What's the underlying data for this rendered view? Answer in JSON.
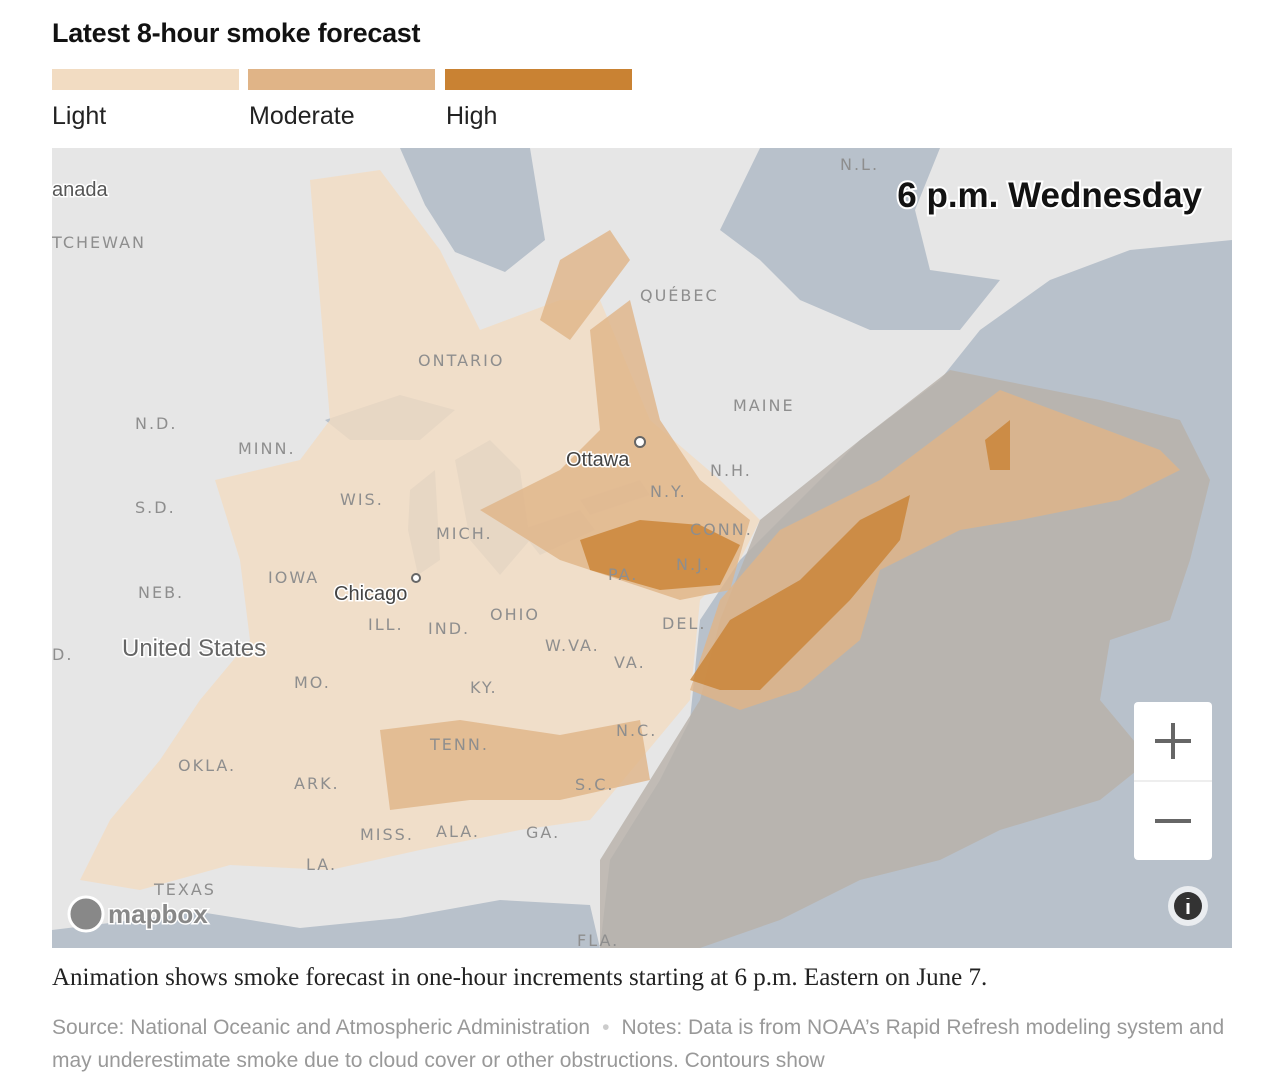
{
  "header": {
    "title": "Latest 8-hour smoke forecast"
  },
  "legend": {
    "items": [
      {
        "label": "Light",
        "color": "#f2dcc2"
      },
      {
        "label": "Moderate",
        "color": "#e0b487"
      },
      {
        "label": "High",
        "color": "#c98233"
      }
    ]
  },
  "map": {
    "time_label": "6 p.m. Wednesday",
    "labels": {
      "canada": "anada",
      "saskatchewan": "TCHEWAN",
      "nl": "N.L.",
      "quebec": "QUÉBEC",
      "ontario": "ONTARIO",
      "maine": "MAINE",
      "nd": "N.D.",
      "minn": "MINN.",
      "sd": "S.D.",
      "wis": "WIS.",
      "mich": "MICH.",
      "ottawa": "Ottawa",
      "nh": "N.H.",
      "ny": "N.Y.",
      "conn": "CONN.",
      "pa": "PA.",
      "nj": "N.J.",
      "neb": "NEB.",
      "iowa": "IOWA",
      "chicago": "Chicago",
      "ill": "ILL.",
      "ind": "IND.",
      "ohio": "OHIO",
      "del": "DEL.",
      "wva": "W.VA.",
      "va": "VA.",
      "us": "United States",
      "co": "D.",
      "mo": "MO.",
      "ky": "KY.",
      "nc": "N.C.",
      "tenn": "TENN.",
      "okla": "OKLA.",
      "ark": "ARK.",
      "sc": "S.C.",
      "miss": "MISS.",
      "ala": "ALA.",
      "ga": "GA.",
      "la": "LA.",
      "texas": "TEXAS",
      "fla": "FLA."
    },
    "attribution": "mapbox"
  },
  "caption": "Animation shows smoke forecast in one-hour increments starting at 6 p.m. Eastern on June 7.",
  "source": {
    "source": "Source: National Oceanic and Atmospheric Administration",
    "notes": "Notes: Data is from NOAA’s Rapid Refresh modeling system and may underestimate smoke due to cloud cover or other obstructions. Contours show"
  }
}
